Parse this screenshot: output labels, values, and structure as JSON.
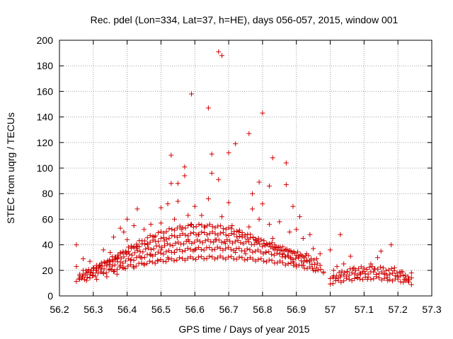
{
  "chart_data": {
    "type": "scatter",
    "title": "Rec. pdel (Lon=334, Lat=37, h=HE), days 056-057, 2015, window 001",
    "xlabel": "GPS time / Days of year 2015",
    "ylabel": "STEC from uqrg / TECUs",
    "xlim": [
      56.2,
      57.3
    ],
    "ylim": [
      0,
      200
    ],
    "xticks": [
      "56.2",
      "56.3",
      "56.4",
      "56.5",
      "56.6",
      "56.7",
      "56.8",
      "56.9",
      "57",
      "57.1",
      "57.2",
      "57.3"
    ],
    "yticks": [
      "0",
      "20",
      "40",
      "60",
      "80",
      "100",
      "120",
      "140",
      "160",
      "180",
      "200"
    ],
    "grid": true,
    "marker": "+",
    "color": "#d00000",
    "points": [
      [
        56.25,
        40
      ],
      [
        56.25,
        23
      ],
      [
        56.26,
        17
      ],
      [
        56.26,
        13
      ],
      [
        56.27,
        29
      ],
      [
        56.27,
        20
      ],
      [
        56.28,
        18
      ],
      [
        56.28,
        12
      ],
      [
        56.29,
        14
      ],
      [
        56.29,
        27
      ],
      [
        56.3,
        22
      ],
      [
        56.3,
        16
      ],
      [
        56.31,
        13
      ],
      [
        56.31,
        20
      ],
      [
        56.32,
        24
      ],
      [
        56.33,
        18
      ],
      [
        56.33,
        36
      ],
      [
        56.34,
        15
      ],
      [
        56.35,
        34
      ],
      [
        56.35,
        21
      ],
      [
        56.36,
        46
      ],
      [
        56.36,
        19
      ],
      [
        56.37,
        29
      ],
      [
        56.37,
        17
      ],
      [
        56.38,
        53
      ],
      [
        56.38,
        24
      ],
      [
        56.39,
        50
      ],
      [
        56.39,
        22
      ],
      [
        56.4,
        60
      ],
      [
        56.4,
        44
      ],
      [
        56.41,
        28
      ],
      [
        56.42,
        55
      ],
      [
        56.42,
        22
      ],
      [
        56.43,
        68
      ],
      [
        56.43,
        39
      ],
      [
        56.44,
        30
      ],
      [
        56.45,
        52
      ],
      [
        56.45,
        25
      ],
      [
        56.46,
        41
      ],
      [
        56.47,
        32
      ],
      [
        56.47,
        56
      ],
      [
        56.48,
        46
      ],
      [
        56.49,
        28
      ],
      [
        56.5,
        69
      ],
      [
        56.5,
        57
      ],
      [
        56.5,
        36
      ],
      [
        56.51,
        43
      ],
      [
        56.52,
        72
      ],
      [
        56.52,
        30
      ],
      [
        56.53,
        110
      ],
      [
        56.53,
        88
      ],
      [
        56.54,
        60
      ],
      [
        56.54,
        34
      ],
      [
        56.55,
        88
      ],
      [
        56.55,
        74
      ],
      [
        56.56,
        52
      ],
      [
        56.57,
        101
      ],
      [
        56.57,
        94
      ],
      [
        56.58,
        63
      ],
      [
        56.58,
        44
      ],
      [
        56.59,
        158
      ],
      [
        56.59,
        56
      ],
      [
        56.6,
        70
      ],
      [
        56.6,
        36
      ],
      [
        56.61,
        48
      ],
      [
        56.62,
        63
      ],
      [
        56.63,
        54
      ],
      [
        56.64,
        147
      ],
      [
        56.64,
        76
      ],
      [
        56.65,
        111
      ],
      [
        56.65,
        96
      ],
      [
        56.66,
        44
      ],
      [
        56.67,
        191
      ],
      [
        56.67,
        91
      ],
      [
        56.68,
        188
      ],
      [
        56.68,
        62
      ],
      [
        56.69,
        41
      ],
      [
        56.7,
        112
      ],
      [
        56.7,
        73
      ],
      [
        56.71,
        55
      ],
      [
        56.72,
        119
      ],
      [
        56.72,
        34
      ],
      [
        56.73,
        50
      ],
      [
        56.74,
        46
      ],
      [
        56.75,
        33
      ],
      [
        56.76,
        127
      ],
      [
        56.76,
        54
      ],
      [
        56.77,
        80
      ],
      [
        56.77,
        68
      ],
      [
        56.78,
        43
      ],
      [
        56.79,
        89
      ],
      [
        56.79,
        60
      ],
      [
        56.8,
        143
      ],
      [
        56.8,
        72
      ],
      [
        56.81,
        34
      ],
      [
        56.82,
        86
      ],
      [
        56.82,
        56
      ],
      [
        56.83,
        108
      ],
      [
        56.83,
        45
      ],
      [
        56.84,
        38
      ],
      [
        56.85,
        58
      ],
      [
        56.86,
        33
      ],
      [
        56.87,
        104
      ],
      [
        56.87,
        87
      ],
      [
        56.88,
        50
      ],
      [
        56.89,
        70
      ],
      [
        56.89,
        27
      ],
      [
        56.9,
        52
      ],
      [
        56.91,
        62
      ],
      [
        56.92,
        45
      ],
      [
        56.92,
        24
      ],
      [
        56.93,
        33
      ],
      [
        56.94,
        48
      ],
      [
        56.95,
        37
      ],
      [
        56.95,
        20
      ],
      [
        56.96,
        22
      ],
      [
        56.97,
        33
      ],
      [
        56.98,
        18
      ],
      [
        57.0,
        36
      ],
      [
        57.01,
        20
      ],
      [
        57.02,
        23
      ],
      [
        57.03,
        48
      ],
      [
        57.03,
        15
      ],
      [
        57.04,
        25
      ],
      [
        57.05,
        19
      ],
      [
        57.06,
        31
      ],
      [
        57.07,
        22
      ],
      [
        57.08,
        14
      ],
      [
        57.09,
        17
      ],
      [
        57.1,
        19
      ],
      [
        57.11,
        13
      ],
      [
        57.12,
        25
      ],
      [
        57.13,
        21
      ],
      [
        57.14,
        30
      ],
      [
        57.15,
        35
      ],
      [
        57.16,
        17
      ],
      [
        57.17,
        12
      ],
      [
        57.18,
        40
      ],
      [
        57.19,
        22
      ],
      [
        57.2,
        15
      ],
      [
        57.21,
        19
      ],
      [
        57.22,
        13
      ],
      [
        57.23,
        12
      ],
      [
        57.24,
        18
      ]
    ],
    "bands": [
      {
        "from": 56.25,
        "to": 56.98,
        "peak": 56.66,
        "lo": 12,
        "hi": 30
      },
      {
        "from": 56.26,
        "to": 56.97,
        "peak": 56.66,
        "lo": 15,
        "hi": 37
      },
      {
        "from": 56.27,
        "to": 56.96,
        "peak": 56.66,
        "lo": 18,
        "hi": 43
      },
      {
        "from": 56.3,
        "to": 56.94,
        "peak": 56.64,
        "lo": 21,
        "hi": 49
      },
      {
        "from": 56.34,
        "to": 56.9,
        "peak": 56.62,
        "lo": 25,
        "hi": 55
      },
      {
        "from": 57.0,
        "to": 57.24,
        "peak": 57.12,
        "lo": 10,
        "hi": 14
      },
      {
        "from": 57.0,
        "to": 57.24,
        "peak": 57.12,
        "lo": 13,
        "hi": 18
      },
      {
        "from": 57.01,
        "to": 57.23,
        "peak": 57.12,
        "lo": 16,
        "hi": 22
      }
    ]
  }
}
